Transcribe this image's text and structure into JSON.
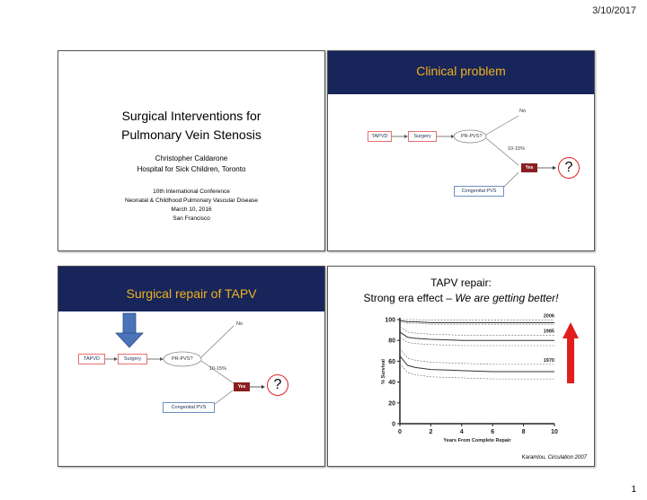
{
  "header": {
    "date": "3/10/2017"
  },
  "footer": {
    "page_number": "1"
  },
  "slide1": {
    "title_line1": "Surgical Interventions for",
    "title_line2": "Pulmonary Vein Stenosis",
    "author": "Christopher Caldarone",
    "institution": "Hospital for Sick Children, Toronto",
    "conference": "10th International Conference",
    "conference_name": "Neonatal & Childhood Pulmonary Vascular Disease",
    "date": "March 10, 2016",
    "location": "San Francisco"
  },
  "slide2": {
    "title": "Clinical problem",
    "flow": {
      "tapvd": "TAPVD",
      "surgery": "Surgery",
      "decision": "PR-PVS?",
      "no": "No",
      "percent": "10-15%",
      "yes": "Yes",
      "congenital": "Congenital PVS",
      "question": "?"
    }
  },
  "slide3": {
    "title": "Surgical repair of TAPV",
    "flow": {
      "tapvd": "TAPVD",
      "surgery": "Surgery",
      "decision": "PR-PVS?",
      "no": "No",
      "percent": "10-15%",
      "yes": "Yes",
      "congenital": "Congenital PVS",
      "question": "?"
    }
  },
  "slide4": {
    "title_line1": "TAPV repair:",
    "title_line2_prefix": "Strong era effect – ",
    "title_line2_emph": "We are getting better!",
    "citation": "Karamlou, Circulation 2007",
    "colors": {
      "arrow": "#e11d1d"
    }
  },
  "chart_data": {
    "type": "line",
    "xlabel": "Years From Complete Repair",
    "ylabel": "% Survival",
    "xlim": [
      0,
      10
    ],
    "ylim": [
      0,
      100
    ],
    "x_ticks": [
      0,
      2,
      4,
      6,
      8,
      10
    ],
    "y_ticks": [
      0,
      20,
      40,
      60,
      80,
      100
    ],
    "series": [
      {
        "name": "2006",
        "x": [
          0,
          0.5,
          1,
          2,
          4,
          6,
          8,
          10
        ],
        "y": [
          99,
          98,
          98,
          97,
          97,
          97,
          97,
          97
        ]
      },
      {
        "name": "1985",
        "x": [
          0,
          0.5,
          1,
          2,
          4,
          6,
          8,
          10
        ],
        "y": [
          88,
          83,
          82,
          81,
          80,
          80,
          80,
          80
        ]
      },
      {
        "name": "1970",
        "x": [
          0,
          0.5,
          1,
          2,
          4,
          6,
          8,
          10
        ],
        "y": [
          65,
          56,
          54,
          52,
          51,
          50,
          50,
          50
        ]
      }
    ]
  }
}
